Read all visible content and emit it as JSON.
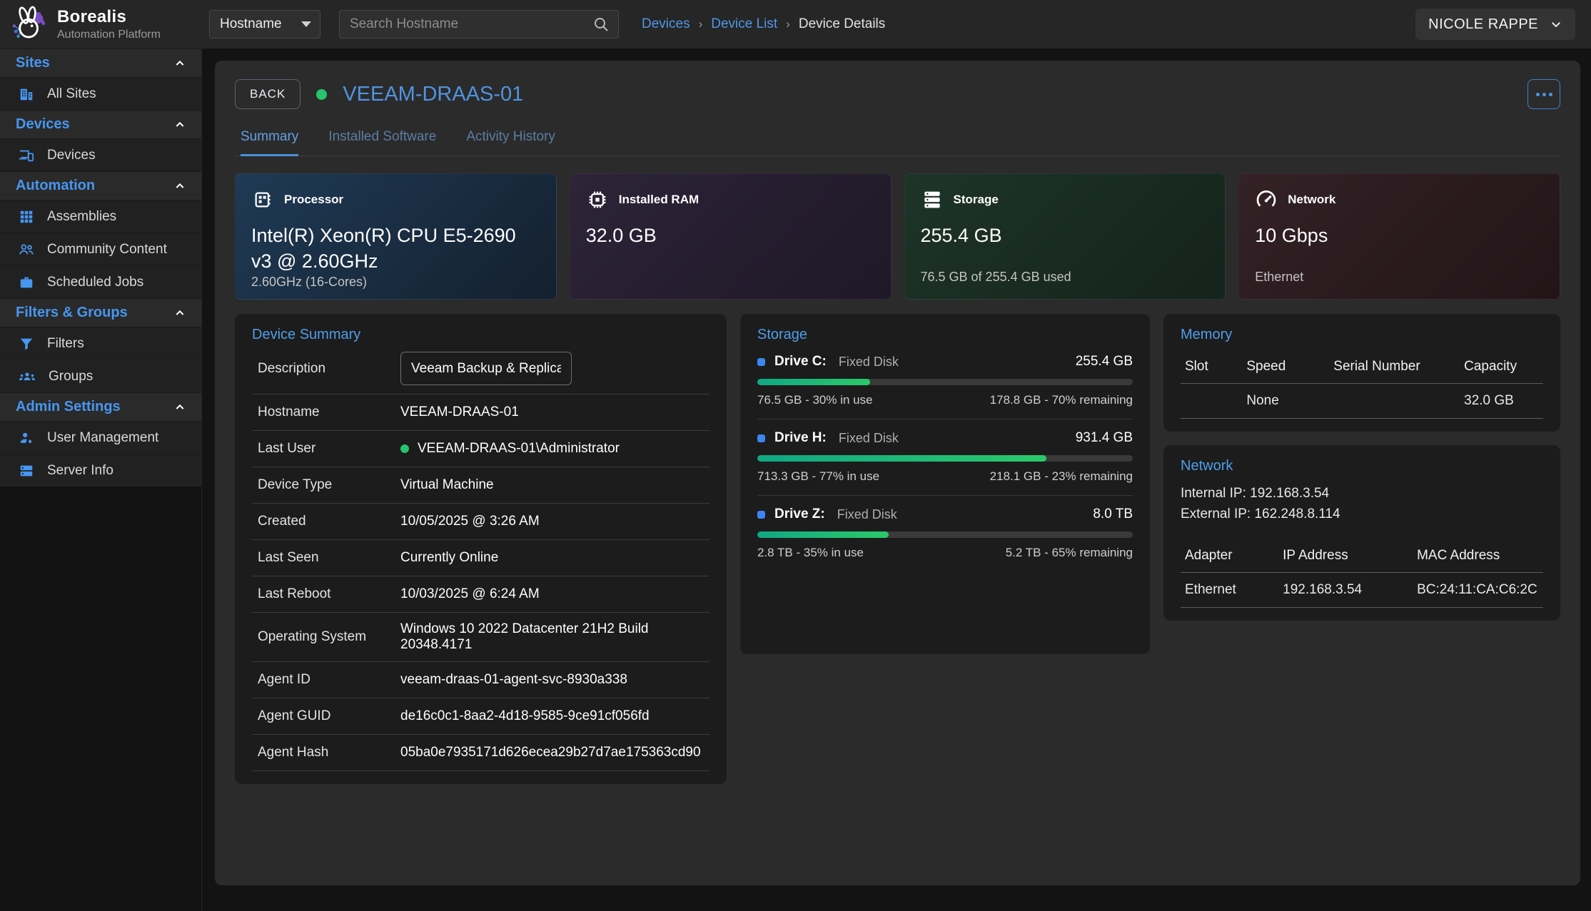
{
  "app": {
    "brand": "Borealis",
    "brand_sub": "Automation Platform",
    "user": "NICOLE RAPPE"
  },
  "colors": {
    "accent_blue": "#4796f0",
    "status_green": "#27c46d",
    "progress_from": "#0fa884",
    "progress_to": "#2bc96a"
  },
  "topbar": {
    "filter_selected": "Hostname",
    "search_placeholder": "Search Hostname",
    "breadcrumbs": [
      {
        "label": "Devices"
      },
      {
        "label": "Device List"
      },
      {
        "label": "Device Details"
      }
    ]
  },
  "sidebar": {
    "sections": [
      {
        "label": "Sites",
        "items": [
          {
            "label": "All Sites",
            "icon": "building-icon"
          }
        ]
      },
      {
        "label": "Devices",
        "items": [
          {
            "label": "Devices",
            "icon": "devices-icon"
          }
        ]
      },
      {
        "label": "Automation",
        "items": [
          {
            "label": "Assemblies",
            "icon": "grid-icon"
          },
          {
            "label": "Community Content",
            "icon": "people-icon"
          },
          {
            "label": "Scheduled Jobs",
            "icon": "briefcase-icon"
          }
        ]
      },
      {
        "label": "Filters & Groups",
        "items": [
          {
            "label": "Filters",
            "icon": "filter-icon"
          },
          {
            "label": "Groups",
            "icon": "groups-icon"
          }
        ]
      },
      {
        "label": "Admin Settings",
        "items": [
          {
            "label": "User Management",
            "icon": "user-gear-icon"
          },
          {
            "label": "Server Info",
            "icon": "server-icon"
          }
        ]
      }
    ]
  },
  "header": {
    "back_label": "BACK",
    "device_name": "VEEAM-DRAAS-01",
    "status": "online"
  },
  "tabs": [
    {
      "label": "Summary",
      "active": true
    },
    {
      "label": "Installed Software",
      "active": false
    },
    {
      "label": "Activity History",
      "active": false
    }
  ],
  "stat_cards": [
    {
      "title": "Processor",
      "icon": "cpu-icon",
      "value": "Intel(R) Xeon(R) CPU E5-2690 v3 @ 2.60GHz",
      "subtext": "2.60GHz (16-Cores)",
      "gradient": {
        "from": "#1f3a55",
        "to": "#14202e"
      }
    },
    {
      "title": "Installed RAM",
      "icon": "ram-icon",
      "value": "32.0 GB",
      "subtext": "",
      "gradient": {
        "from": "#2d2438",
        "to": "#1e1827"
      }
    },
    {
      "title": "Storage",
      "icon": "storage-icon",
      "value": "255.4 GB",
      "subtext": "76.5 GB of 255.4 GB used",
      "gradient": {
        "from": "#1e3429",
        "to": "#14231b"
      }
    },
    {
      "title": "Network",
      "icon": "speedometer-icon",
      "value": "10 Gbps",
      "subtext": "Ethernet",
      "gradient": {
        "from": "#332126",
        "to": "#221518"
      }
    }
  ],
  "device_summary": {
    "title": "Device Summary",
    "description_label": "Description",
    "description_value": "Veeam Backup & Replication",
    "rows": [
      {
        "label": "Hostname",
        "value": "VEEAM-DRAAS-01"
      },
      {
        "label": "Last User",
        "value": "VEEAM-DRAAS-01\\Administrator"
      },
      {
        "label": "Device Type",
        "value": "Virtual Machine"
      },
      {
        "label": "Created",
        "value": "10/05/2025 @ 3:26 AM"
      },
      {
        "label": "Last Seen",
        "value": "Currently Online"
      },
      {
        "label": "Last Reboot",
        "value": "10/03/2025 @ 6:24 AM"
      },
      {
        "label": "Operating System",
        "value": "Windows 10 2022 Datacenter 21H2 Build 20348.4171"
      },
      {
        "label": "Agent ID",
        "value": "veeam-draas-01-agent-svc-8930a338"
      },
      {
        "label": "Agent GUID",
        "value": "de16c0c1-8aa2-4d18-9585-9ce91cf056fd"
      },
      {
        "label": "Agent Hash",
        "value": "05ba0e7935171d626ecea29b27d7ae175363cd90"
      }
    ]
  },
  "storage_panel": {
    "title": "Storage",
    "drives": [
      {
        "name": "Drive C:",
        "type": "Fixed Disk",
        "size": "255.4 GB",
        "used_pct": 30,
        "used_label": "76.5 GB - 30% in use",
        "remaining_label": "178.8 GB - 70% remaining"
      },
      {
        "name": "Drive H:",
        "type": "Fixed Disk",
        "size": "931.4 GB",
        "used_pct": 77,
        "used_label": "713.3 GB - 77% in use",
        "remaining_label": "218.1 GB - 23% remaining"
      },
      {
        "name": "Drive Z:",
        "type": "Fixed Disk",
        "size": "8.0 TB",
        "used_pct": 35,
        "used_label": "2.8 TB - 35% in use",
        "remaining_label": "5.2 TB - 65% remaining"
      }
    ]
  },
  "memory_panel": {
    "title": "Memory",
    "columns": [
      "Slot",
      "Speed",
      "Serial Number",
      "Capacity"
    ],
    "rows": [
      {
        "slot": "",
        "speed": "None",
        "serial": "",
        "capacity": "32.0 GB"
      }
    ]
  },
  "network_panel": {
    "title": "Network",
    "internal_ip": "Internal IP: 192.168.3.54",
    "external_ip": "External IP: 162.248.8.114",
    "columns": [
      "Adapter",
      "IP Address",
      "MAC Address"
    ],
    "rows": [
      {
        "adapter": "Ethernet",
        "ip": "192.168.3.54",
        "mac": "BC:24:11:CA:C6:2C"
      }
    ]
  }
}
